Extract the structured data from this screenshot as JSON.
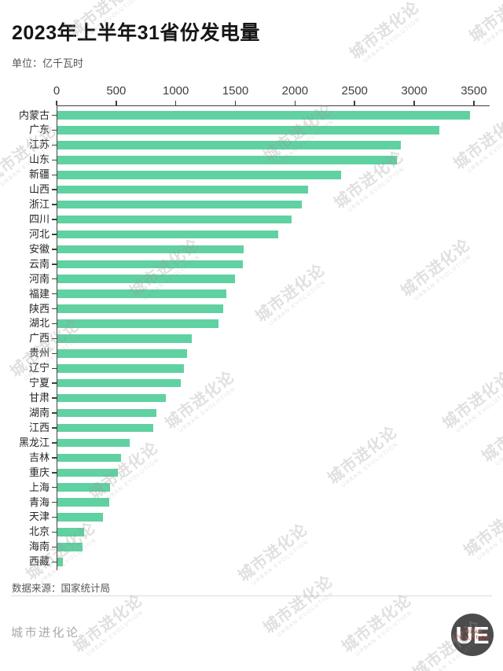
{
  "title": "2023年上半年31省份发电量",
  "subtitle": "单位：亿千瓦时",
  "source_note": "数据来源：国家统计局",
  "footer": {
    "brand": "城市进化论",
    "logo_main": "UE",
    "logo_sub1": "URBAN",
    "logo_sub2": "EVOLUTION"
  },
  "watermark": {
    "line1": "城市进化论",
    "line2": "URBAN EVOLUTION"
  },
  "colors": {
    "bar": "#60d1a1",
    "axis": "#3f3f3f",
    "title_text": "#161616",
    "muted_text": "#565656",
    "footer_text": "#a9a9a9",
    "logo_bg": "#4c4c4c",
    "logo_red": "#cf3a2b",
    "divider": "#dcdcdc"
  },
  "chart_data": {
    "type": "bar",
    "orientation": "horizontal",
    "title": "2023年上半年31省份发电量",
    "unit": "亿千瓦时",
    "xlabel": "",
    "ylabel": "",
    "xlim": [
      0,
      3626
    ],
    "x_ticks": [
      0,
      500,
      1000,
      1500,
      2000,
      2500,
      3000,
      3500
    ],
    "x_tick_labels": [
      "0",
      "500",
      "1000",
      "1500",
      "2000",
      "2500",
      "3000",
      "3500"
    ],
    "grid": false,
    "legend": false,
    "categories": [
      "内蒙古",
      "广东",
      "江苏",
      "山东",
      "新疆",
      "山西",
      "浙江",
      "四川",
      "河北",
      "安徽",
      "云南",
      "河南",
      "福建",
      "陕西",
      "湖北",
      "广西",
      "贵州",
      "辽宁",
      "宁夏",
      "甘肃",
      "湖南",
      "江西",
      "黑龙江",
      "吉林",
      "重庆",
      "上海",
      "青海",
      "天津",
      "北京",
      "海南",
      "西藏"
    ],
    "values": [
      3460,
      3205,
      2880,
      2845,
      2380,
      2100,
      2050,
      1965,
      1855,
      1564,
      1556,
      1492,
      1415,
      1391,
      1349,
      1129,
      1090,
      1063,
      1036,
      910,
      833,
      804,
      606,
      536,
      510,
      444,
      437,
      382,
      222,
      211,
      48
    ]
  }
}
